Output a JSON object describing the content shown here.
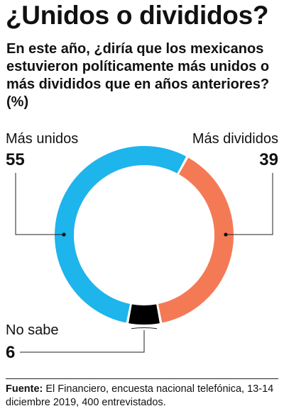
{
  "chart_data": {
    "type": "pie",
    "title": "¿Unidos o divididos?",
    "subtitle": "En este año, ¿diría que los mexicanos estuvieron políticamente más unidos o más divididos que en años anteriores? (%)",
    "categories": [
      "Más unidos",
      "Más divididos",
      "No sabe"
    ],
    "values": [
      55,
      39,
      6
    ],
    "value_labels": [
      "55",
      "39",
      "6"
    ],
    "colors": [
      "#1EB4EC",
      "#F47A56",
      "#000000"
    ],
    "style": "donut"
  },
  "source": {
    "label": "Fuente:",
    "text": " El Financiero, encuesta nacional telefónica, 13-14 diciembre 2019, 400 entrevistados."
  }
}
